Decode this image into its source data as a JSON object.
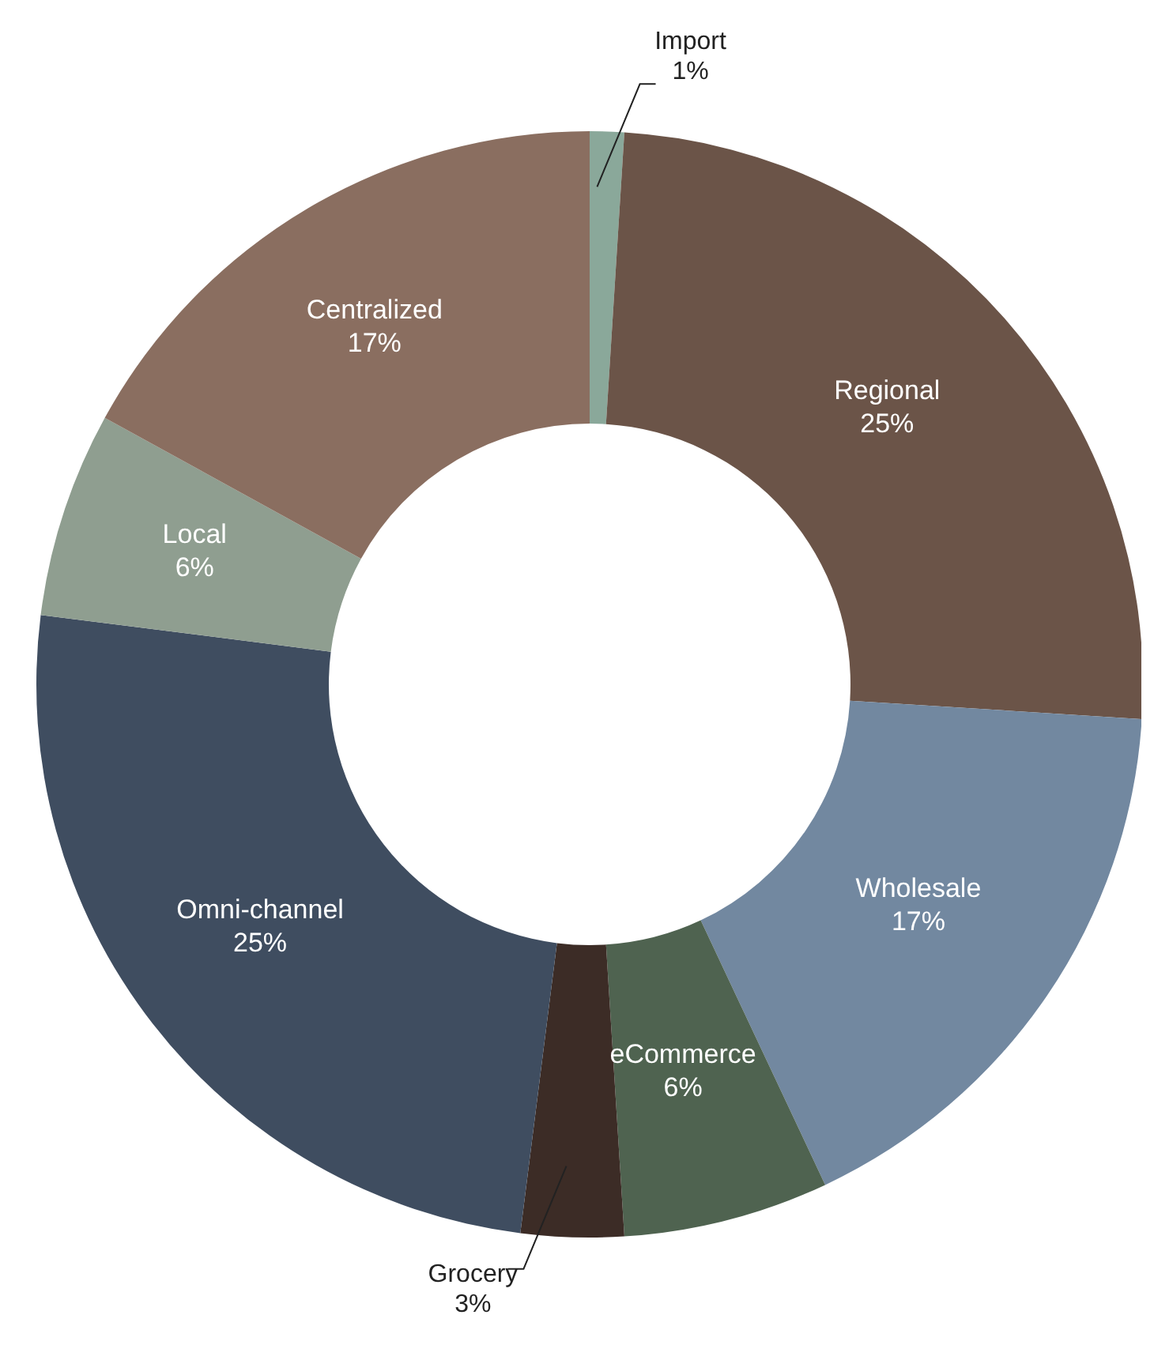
{
  "chart_data": {
    "type": "donut",
    "categories": [
      "Import",
      "Regional",
      "Wholesale",
      "eCommerce",
      "Grocery",
      "Omni-channel",
      "Local",
      "Centralized"
    ],
    "values": [
      1,
      25,
      17,
      6,
      3,
      25,
      6,
      17
    ],
    "value_labels": [
      "1%",
      "25%",
      "17%",
      "6%",
      "3%",
      "25%",
      "6%",
      "17%"
    ],
    "colors": [
      "#8aa89a",
      "#6b5448",
      "#7288a0",
      "#4f6350",
      "#3c2c26",
      "#3f4d60",
      "#8f9e90",
      "#8a6e60"
    ]
  }
}
